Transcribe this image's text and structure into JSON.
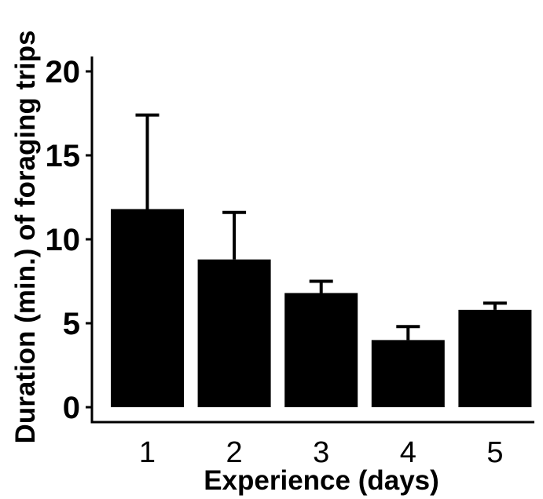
{
  "chart_data": {
    "type": "bar",
    "title": "",
    "xlabel": "Experience (days)",
    "ylabel": "Duration (min.) of foraging trips",
    "categories": [
      "1",
      "2",
      "3",
      "4",
      "5"
    ],
    "values": [
      11.8,
      8.8,
      6.8,
      4.0,
      5.8
    ],
    "error_upper": [
      17.4,
      11.6,
      7.5,
      4.8,
      6.2
    ],
    "ylim": [
      0,
      20
    ],
    "yticks": [
      "0",
      "5",
      "10",
      "15",
      "20"
    ],
    "bar_color": "#000000",
    "grid": false
  }
}
